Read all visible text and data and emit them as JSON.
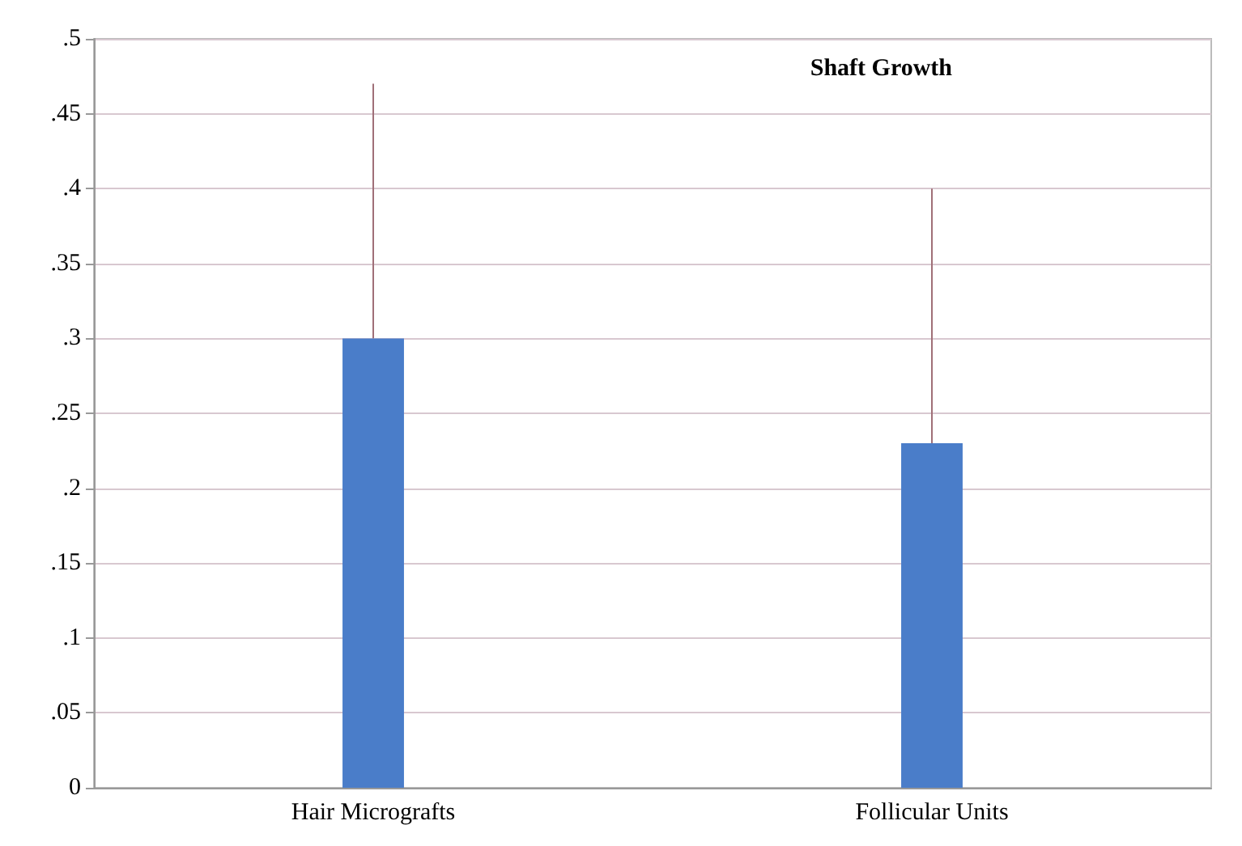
{
  "chart_data": {
    "type": "bar",
    "title": "Shaft Growth",
    "categories": [
      "Hair Micrografts",
      "Follicular Units"
    ],
    "values": [
      0.3,
      0.23
    ],
    "color": "#4a7dc9",
    "errors": [
      [
        0.3,
        0.47
      ],
      [
        0.23,
        0.4
      ]
    ],
    "ylim": [
      0,
      0.5
    ],
    "yticks": [
      0,
      {
        "value": 0.05,
        "label": ".05"
      },
      {
        "value": 0.1,
        "label": ".1"
      },
      {
        "value": 0.15,
        "label": ".15"
      },
      {
        "value": 0.2,
        "label": ".2"
      },
      {
        "value": 0.25,
        "label": ".25"
      },
      {
        "value": 0.3,
        "label": ".3"
      },
      {
        "value": 0.35,
        "label": ".35"
      },
      {
        "value": 0.4,
        "label": ".4"
      },
      {
        "value": 0.45,
        "label": ".45"
      },
      {
        "value": 0.5,
        "label": ".5"
      }
    ],
    "grid": "y"
  }
}
